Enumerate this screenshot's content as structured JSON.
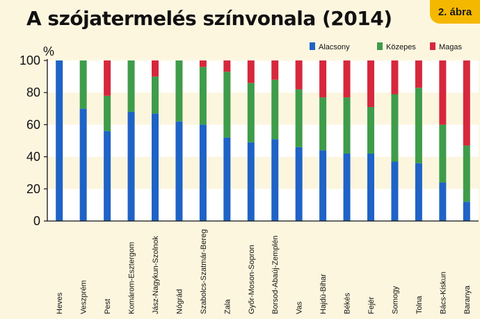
{
  "figure_label": "2. ábra",
  "colors": {
    "background": "#fdf6df",
    "band": "#ffffff",
    "low": "#1f63c6",
    "medium": "#3f9c4a",
    "high": "#d6283d",
    "badge": "#f5b800"
  },
  "chart_data": {
    "type": "bar",
    "stacked": true,
    "title": "A szójatermelés színvonala (2014)",
    "ylabel": "%",
    "xlabel": "",
    "ylim": [
      0,
      100
    ],
    "yticks": [
      0,
      20,
      40,
      60,
      80,
      100
    ],
    "grid": false,
    "legend_position": "top-right",
    "categories": [
      "Heves",
      "Veszprém",
      "Pest",
      "Komárom-Esztergom",
      "Jász-Nagykun-Szolnok",
      "Nógrád",
      "Szabolcs-Szatmár-Bereg",
      "Zala",
      "Győr-Moson-Sopron",
      "Borsod-Abaúj-Zemplén",
      "Vas",
      "Hajdú-Bihar",
      "Békés",
      "Fejér",
      "Somogy",
      "Tolna",
      "Bács-Kiskun",
      "Baranya"
    ],
    "series": [
      {
        "name": "Alacsony",
        "color": "#1f63c6",
        "values": [
          100,
          70,
          56,
          68,
          67,
          62,
          60,
          52,
          49,
          51,
          46,
          44,
          42,
          42,
          37,
          36,
          24,
          12
        ]
      },
      {
        "name": "Közepes",
        "color": "#3f9c4a",
        "values": [
          0,
          30,
          22,
          32,
          23,
          38,
          36,
          41,
          37,
          37,
          36,
          33,
          35,
          29,
          42,
          47,
          36,
          35
        ]
      },
      {
        "name": "Magas",
        "color": "#d6283d",
        "values": [
          0,
          0,
          22,
          0,
          10,
          0,
          4,
          7,
          14,
          12,
          18,
          23,
          23,
          29,
          21,
          17,
          40,
          53
        ]
      }
    ]
  }
}
